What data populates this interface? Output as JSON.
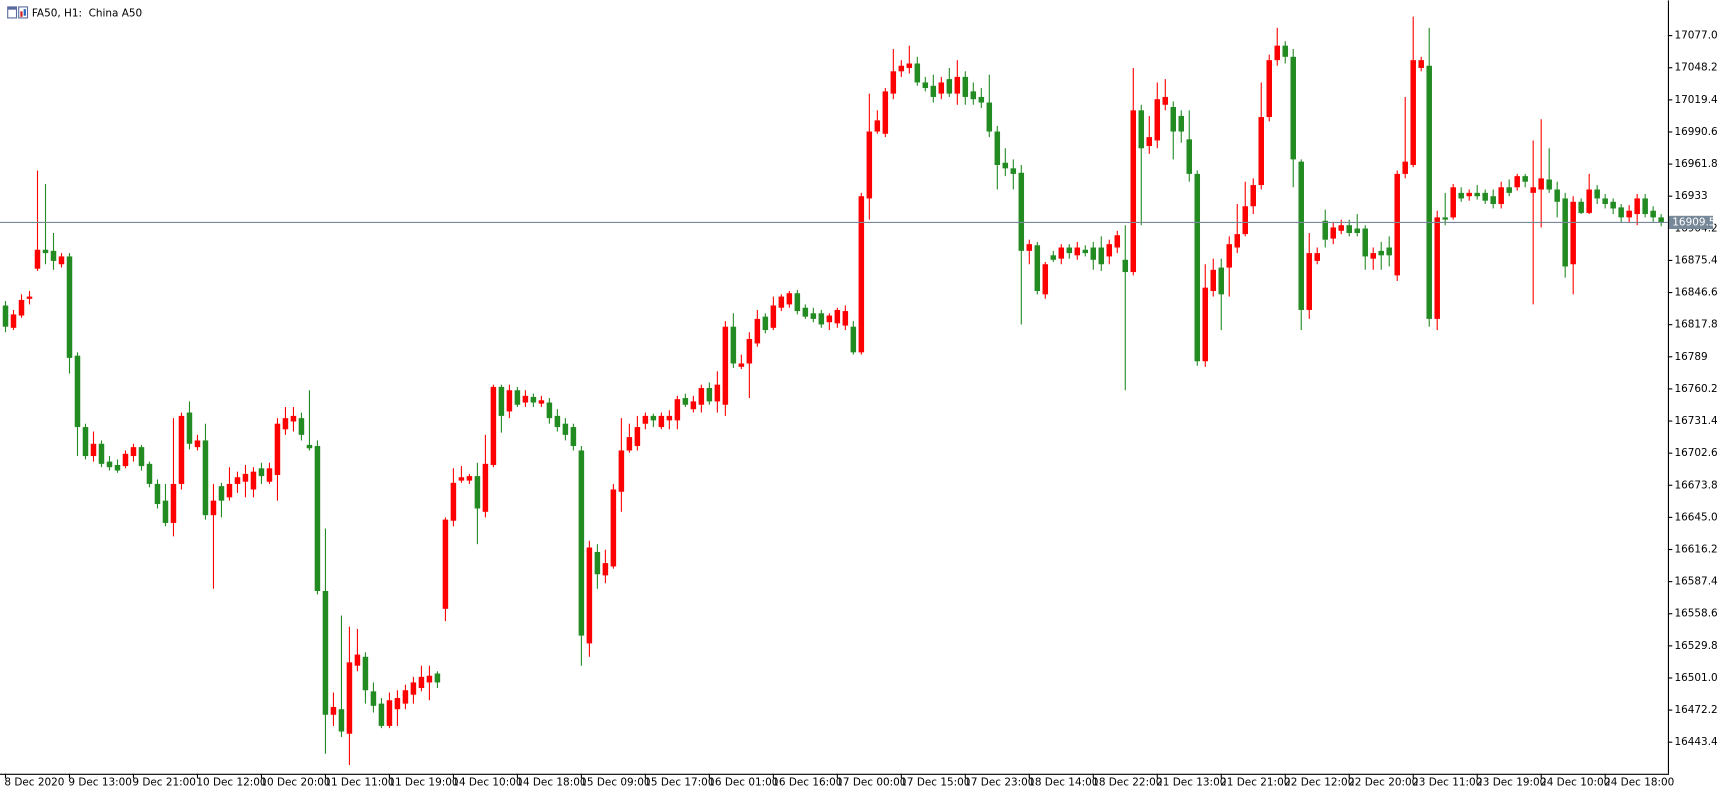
{
  "chart_data": {
    "type": "candlestick",
    "title": "FA50, H1:  China A50",
    "up_color": "#ff0000",
    "down_color": "#228b22",
    "last_price": 16909.5,
    "last_price_color": "#778899",
    "grid": false,
    "ylim": [
      16415.1,
      17104.7
    ],
    "yticks": [
      {
        "value": 17077,
        "label": "17077.0"
      },
      17048.2,
      17019.4,
      16990.6,
      16961.8,
      16933,
      16904.2,
      16875.4,
      16846.6,
      16817.8,
      16789,
      16760.2,
      16731.4,
      16702.6,
      16673.8,
      {
        "value": 16645,
        "label": "16645.0"
      },
      16616.2,
      16587.4,
      16558.6,
      16529.8,
      {
        "value": 16501,
        "label": "16501.0"
      },
      16472.2,
      16443.4
    ],
    "categories": [
      "8 Dec 2020",
      null,
      null,
      null,
      null,
      null,
      null,
      null,
      "9 Dec 13:00",
      null,
      null,
      null,
      null,
      null,
      null,
      null,
      "9 Dec 21:00",
      null,
      null,
      null,
      null,
      null,
      null,
      null,
      "10 Dec 12:00",
      null,
      null,
      null,
      null,
      null,
      null,
      null,
      "10 Dec 20:00",
      null,
      null,
      null,
      null,
      null,
      null,
      null,
      "11 Dec 11:00",
      null,
      null,
      null,
      null,
      null,
      null,
      null,
      "11 Dec 19:00",
      null,
      null,
      null,
      null,
      null,
      null,
      null,
      "14 Dec 10:00",
      null,
      null,
      null,
      null,
      null,
      null,
      null,
      "14 Dec 18:00",
      null,
      null,
      null,
      null,
      null,
      null,
      null,
      "15 Dec 09:00",
      null,
      null,
      null,
      null,
      null,
      null,
      null,
      "15 Dec 17:00",
      null,
      null,
      null,
      null,
      null,
      null,
      null,
      "16 Dec 01:00",
      null,
      null,
      null,
      null,
      null,
      null,
      null,
      "16 Dec 16:00",
      null,
      null,
      null,
      null,
      null,
      null,
      null,
      "17 Dec 00:00",
      null,
      null,
      null,
      null,
      null,
      null,
      null,
      "17 Dec 15:00",
      null,
      null,
      null,
      null,
      null,
      null,
      null,
      "17 Dec 23:00",
      null,
      null,
      null,
      null,
      null,
      null,
      null,
      "18 Dec 14:00",
      null,
      null,
      null,
      null,
      null,
      null,
      null,
      "18 Dec 22:00",
      null,
      null,
      null,
      null,
      null,
      null,
      null,
      "21 Dec 13:00",
      null,
      null,
      null,
      null,
      null,
      null,
      null,
      "21 Dec 21:00",
      null,
      null,
      null,
      null,
      null,
      null,
      null,
      "22 Dec 12:00",
      null,
      null,
      null,
      null,
      null,
      null,
      null,
      "22 Dec 20:00",
      null,
      null,
      null,
      null,
      null,
      null,
      null,
      "23 Dec 11:00",
      null,
      null,
      null,
      null,
      null,
      null,
      null,
      "23 Dec 19:00",
      null,
      null,
      null,
      null,
      null,
      null,
      null,
      "24 Dec 10:00",
      null,
      null,
      null,
      null,
      null,
      null,
      null,
      "24 Dec 18:00",
      null,
      null,
      null,
      null,
      null,
      null,
      null
    ],
    "ohlc": [
      [
        16835,
        16839,
        16811,
        16816
      ],
      [
        16815,
        16831,
        16813,
        16827
      ],
      [
        16826,
        16845,
        16824,
        16840
      ],
      [
        16841,
        16848,
        16836,
        16843
      ],
      [
        16868,
        16956,
        16866,
        16885
      ],
      [
        16885,
        16944,
        16872,
        16882
      ],
      [
        16884,
        16900,
        16867,
        16875
      ],
      [
        16872,
        16882,
        16869,
        16879
      ],
      [
        16879,
        16882,
        16774,
        16788
      ],
      [
        16790,
        16793,
        16700,
        16726
      ],
      [
        16726,
        16729,
        16697,
        16700
      ],
      [
        16700,
        16722,
        16695,
        16711
      ],
      [
        16711,
        16714,
        16690,
        16693
      ],
      [
        16695,
        16700,
        16687,
        16690
      ],
      [
        16692,
        16697,
        16685,
        16687
      ],
      [
        16691,
        16705,
        16689,
        16702
      ],
      [
        16700,
        16711,
        16695,
        16708
      ],
      [
        16708,
        16710,
        16687,
        16691
      ],
      [
        16693,
        16695,
        16672,
        16675
      ],
      [
        16675,
        16679,
        16653,
        16657
      ],
      [
        16660,
        16675,
        16637,
        16640
      ],
      [
        16640,
        16734,
        16628,
        16675
      ],
      [
        16675,
        16739,
        16670,
        16736
      ],
      [
        16739,
        16749,
        16706,
        16711
      ],
      [
        16708,
        16719,
        16705,
        16714
      ],
      [
        16714,
        16729,
        16643,
        16647
      ],
      [
        16647,
        16675,
        16581,
        16660
      ],
      [
        16673,
        16676,
        16645,
        16660
      ],
      [
        16663,
        16690,
        16660,
        16675
      ],
      [
        16675,
        16686,
        16667,
        16681
      ],
      [
        16677,
        16692,
        16663,
        16684
      ],
      [
        16670,
        16690,
        16663,
        16686
      ],
      [
        16689,
        16694,
        16675,
        16682
      ],
      [
        16677,
        16694,
        16675,
        16689
      ],
      [
        16683,
        16734,
        16660,
        16729
      ],
      [
        16724,
        16744,
        16719,
        16734
      ],
      [
        16731,
        16744,
        16722,
        16736
      ],
      [
        16734,
        16739,
        16714,
        16719
      ],
      [
        16710,
        16759,
        16705,
        16707
      ],
      [
        16709,
        16714,
        16576,
        16579
      ],
      [
        16579,
        16635,
        16433,
        16468
      ],
      [
        16468,
        16488,
        16458,
        16475
      ],
      [
        16473,
        16557,
        16448,
        16453
      ],
      [
        16451,
        16547,
        16423,
        16515
      ],
      [
        16512,
        16545,
        16507,
        16522
      ],
      [
        16520,
        16524,
        16478,
        16490
      ],
      [
        16489,
        16497,
        16470,
        16476
      ],
      [
        16478,
        16483,
        16456,
        16458
      ],
      [
        16458,
        16488,
        16456,
        16481
      ],
      [
        16473,
        16490,
        16458,
        16483
      ],
      [
        16478,
        16495,
        16473,
        16490
      ],
      [
        16486,
        16502,
        16478,
        16497
      ],
      [
        16492,
        16512,
        16489,
        16502
      ],
      [
        16497,
        16512,
        16481,
        16503
      ],
      [
        16505,
        16507,
        16492,
        16497
      ],
      [
        16563,
        16645,
        16552,
        16643
      ],
      [
        16642,
        16689,
        16637,
        16676
      ],
      [
        16678,
        16691,
        16676,
        16681
      ],
      [
        16678,
        16684,
        16675,
        16682
      ],
      [
        16682,
        16694,
        16621,
        16653
      ],
      [
        16650,
        16719,
        16645,
        16693
      ],
      [
        16692,
        16764,
        16690,
        16762
      ],
      [
        16762,
        16764,
        16721,
        16736
      ],
      [
        16740,
        16764,
        16734,
        16759
      ],
      [
        16759,
        16762,
        16744,
        16746
      ],
      [
        16748,
        16759,
        16744,
        16754
      ],
      [
        16753,
        16756,
        16744,
        16748
      ],
      [
        16747,
        16754,
        16744,
        16750
      ],
      [
        16748,
        16752,
        16729,
        16734
      ],
      [
        16736,
        16742,
        16722,
        16726
      ],
      [
        16729,
        16734,
        16714,
        16719
      ],
      [
        16726,
        16729,
        16705,
        16709
      ],
      [
        16705,
        16709,
        16512,
        16539
      ],
      [
        16532,
        16624,
        16520,
        16618
      ],
      [
        16614,
        16621,
        16581,
        16594
      ],
      [
        16593,
        16616,
        16586,
        16604
      ],
      [
        16601,
        16675,
        16599,
        16670
      ],
      [
        16668,
        16734,
        16650,
        16705
      ],
      [
        16705,
        16729,
        16703,
        16717
      ],
      [
        16709,
        16736,
        16705,
        16726
      ],
      [
        16729,
        16739,
        16724,
        16736
      ],
      [
        16736,
        16738,
        16726,
        16732
      ],
      [
        16726,
        16739,
        16724,
        16736
      ],
      [
        16732,
        16741,
        16724,
        16736
      ],
      [
        16732,
        16754,
        16724,
        16751
      ],
      [
        16752,
        16756,
        16744,
        16746
      ],
      [
        16742,
        16754,
        16739,
        16749
      ],
      [
        16746,
        16764,
        16739,
        16761
      ],
      [
        16761,
        16766,
        16746,
        16749
      ],
      [
        16749,
        16776,
        16739,
        16764
      ],
      [
        16746,
        16821,
        16736,
        16816
      ],
      [
        16816,
        16828,
        16779,
        16783
      ],
      [
        16780,
        16791,
        16778,
        16783
      ],
      [
        16783,
        16811,
        16752,
        16805
      ],
      [
        16801,
        16831,
        16798,
        16823
      ],
      [
        16825,
        16828,
        16810,
        16813
      ],
      [
        16815,
        16843,
        16813,
        16835
      ],
      [
        16833,
        16845,
        16830,
        16843
      ],
      [
        16836,
        16848,
        16833,
        16846
      ],
      [
        16846,
        16849,
        16827,
        16830
      ],
      [
        16833,
        16836,
        16823,
        16825
      ],
      [
        16828,
        16833,
        16820,
        16823
      ],
      [
        16828,
        16831,
        16815,
        16818
      ],
      [
        16820,
        16828,
        16813,
        16826
      ],
      [
        16819,
        16833,
        16815,
        16831
      ],
      [
        16817,
        16835,
        16813,
        16830
      ],
      [
        16816,
        16821,
        16791,
        16793
      ],
      [
        16793,
        16936,
        16791,
        16933
      ],
      [
        16931,
        17025,
        16912,
        16991
      ],
      [
        16991,
        17010,
        16989,
        17001
      ],
      [
        16989,
        17030,
        16986,
        17027
      ],
      [
        17025,
        17065,
        17020,
        17045
      ],
      [
        17045,
        17055,
        17040,
        17050
      ],
      [
        17048,
        17068,
        17043,
        17052
      ],
      [
        17052,
        17058,
        17032,
        17035
      ],
      [
        17035,
        17040,
        17027,
        17030
      ],
      [
        17032,
        17042,
        17017,
        17022
      ],
      [
        17025,
        17040,
        17020,
        17035
      ],
      [
        17038,
        17048,
        17022,
        17025
      ],
      [
        17025,
        17055,
        17015,
        17040
      ],
      [
        17040,
        17045,
        17015,
        17022
      ],
      [
        17027,
        17035,
        17015,
        17020
      ],
      [
        17022,
        17030,
        17012,
        17017
      ],
      [
        17017,
        17042,
        16986,
        16991
      ],
      [
        16991,
        16996,
        16939,
        16961
      ],
      [
        16963,
        16976,
        16951,
        16958
      ],
      [
        16958,
        16966,
        16939,
        16953
      ],
      [
        16954,
        16961,
        16818,
        16884
      ],
      [
        16884,
        16894,
        16872,
        16890
      ],
      [
        16889,
        16892,
        16845,
        16848
      ],
      [
        16845,
        16874,
        16841,
        16872
      ],
      [
        16880,
        16884,
        16874,
        16876
      ],
      [
        16877,
        16890,
        16872,
        16887
      ],
      [
        16887,
        16890,
        16877,
        16882
      ],
      [
        16880,
        16892,
        16876,
        16887
      ],
      [
        16885,
        16889,
        16879,
        16882
      ],
      [
        16887,
        16892,
        16867,
        16876
      ],
      [
        16887,
        16897,
        16866,
        16872
      ],
      [
        16879,
        16894,
        16872,
        16890
      ],
      [
        16887,
        16902,
        16882,
        16898
      ],
      [
        16876,
        16907,
        16759,
        16865
      ],
      [
        16865,
        17048,
        16862,
        17010
      ],
      [
        17010,
        17015,
        16907,
        16976
      ],
      [
        16978,
        17005,
        16971,
        16986
      ],
      [
        16983,
        17035,
        16976,
        17020
      ],
      [
        17015,
        17038,
        17010,
        17022
      ],
      [
        17013,
        17018,
        16966,
        16991
      ],
      [
        17005,
        17010,
        16981,
        16991
      ],
      [
        16984,
        17010,
        16946,
        16953
      ],
      [
        16953,
        16956,
        16781,
        16785
      ],
      [
        16785,
        16872,
        16780,
        16851
      ],
      [
        16848,
        16877,
        16843,
        16867
      ],
      [
        16869,
        16877,
        16813,
        16845
      ],
      [
        16869,
        16897,
        16843,
        16890
      ],
      [
        16887,
        16926,
        16882,
        16899
      ],
      [
        16899,
        16946,
        16897,
        16924
      ],
      [
        16924,
        16949,
        16917,
        16943
      ],
      [
        16943,
        17035,
        16939,
        17004
      ],
      [
        17004,
        17060,
        17000,
        17055
      ],
      [
        17055,
        17084,
        17050,
        17068
      ],
      [
        17068,
        17072,
        17052,
        17058
      ],
      [
        17058,
        17065,
        16941,
        16966
      ],
      [
        16964,
        16966,
        16813,
        16831
      ],
      [
        16831,
        16900,
        16823,
        16882
      ],
      [
        16875,
        16887,
        16872,
        16882
      ],
      [
        16911,
        16921,
        16887,
        16894
      ],
      [
        16895,
        16910,
        16890,
        16905
      ],
      [
        16902,
        16912,
        16899,
        16907
      ],
      [
        16907,
        16912,
        16897,
        16900
      ],
      [
        16904,
        16917,
        16897,
        16900
      ],
      [
        16904,
        16907,
        16867,
        16879
      ],
      [
        16877,
        16887,
        16867,
        16882
      ],
      [
        16884,
        16892,
        16867,
        16880
      ],
      [
        16887,
        16897,
        16870,
        16880
      ],
      [
        16862,
        16956,
        16857,
        16953
      ],
      [
        16953,
        17022,
        16949,
        16964
      ],
      [
        16961,
        17094,
        16959,
        17055
      ],
      [
        17048,
        17058,
        17045,
        17055
      ],
      [
        17050,
        17084,
        16816,
        16823
      ],
      [
        16823,
        16920,
        16813,
        16914
      ],
      [
        16914,
        16936,
        16907,
        16912
      ],
      [
        16914,
        16944,
        16912,
        16941
      ],
      [
        16936,
        16941,
        16928,
        16931
      ],
      [
        16933,
        16939,
        16929,
        16936
      ],
      [
        16936,
        16943,
        16930,
        16933
      ],
      [
        16936,
        16939,
        16926,
        16929
      ],
      [
        16933,
        16939,
        16922,
        16926
      ],
      [
        16926,
        16946,
        16922,
        16941
      ],
      [
        16941,
        16948,
        16933,
        16936
      ],
      [
        16941,
        16953,
        16938,
        16951
      ],
      [
        16951,
        16953,
        16941,
        16946
      ],
      [
        16936,
        16983,
        16836,
        16941
      ],
      [
        16939,
        17002,
        16905,
        16949
      ],
      [
        16948,
        16976,
        16936,
        16939
      ],
      [
        16939,
        16946,
        16914,
        16928
      ],
      [
        16931,
        16936,
        16860,
        16870
      ],
      [
        16872,
        16933,
        16845,
        16928
      ],
      [
        16928,
        16931,
        16917,
        16918
      ],
      [
        16918,
        16953,
        16917,
        16939
      ],
      [
        16939,
        16943,
        16926,
        16931
      ],
      [
        16931,
        16935,
        16922,
        16926
      ],
      [
        16928,
        16931,
        16917,
        16922
      ],
      [
        16923,
        16926,
        16909,
        16914
      ],
      [
        16914,
        16925,
        16909,
        16920
      ],
      [
        16917,
        16935,
        16907,
        16931
      ],
      [
        16931,
        16935,
        16914,
        16917
      ],
      [
        16920,
        16924,
        16910,
        16914
      ],
      [
        16914,
        16917,
        16906,
        16909.5
      ]
    ]
  }
}
